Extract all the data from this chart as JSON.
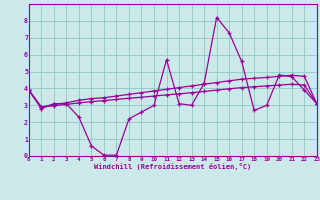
{
  "xlabel": "Windchill (Refroidissement éolien,°C)",
  "xlim": [
    0,
    23
  ],
  "ylim": [
    0,
    9
  ],
  "xticks": [
    0,
    1,
    2,
    3,
    4,
    5,
    6,
    7,
    8,
    9,
    10,
    11,
    12,
    13,
    14,
    15,
    16,
    17,
    18,
    19,
    20,
    21,
    22,
    23
  ],
  "yticks": [
    0,
    1,
    2,
    3,
    4,
    5,
    6,
    7,
    8
  ],
  "bg_color": "#cce9e9",
  "line_color": "#990099",
  "grid_color": "#99cccc",
  "series1_x": [
    0,
    1,
    2,
    3,
    4,
    5,
    6,
    7,
    8,
    9,
    10,
    11,
    12,
    13,
    14,
    15,
    16,
    17,
    18,
    19,
    20,
    21,
    22,
    23
  ],
  "series1_y": [
    3.9,
    2.8,
    3.1,
    3.1,
    2.3,
    0.6,
    0.05,
    0.05,
    2.2,
    2.6,
    3.0,
    5.7,
    3.1,
    3.0,
    4.3,
    8.2,
    7.3,
    5.6,
    2.7,
    3.0,
    4.8,
    4.7,
    3.9,
    3.1
  ],
  "series2_x": [
    0,
    1,
    2,
    3,
    4,
    5,
    6,
    7,
    8,
    9,
    10,
    11,
    12,
    13,
    14,
    15,
    16,
    17,
    18,
    19,
    20,
    21,
    22,
    23
  ],
  "series2_y": [
    3.9,
    2.9,
    3.05,
    3.15,
    3.3,
    3.4,
    3.45,
    3.55,
    3.65,
    3.75,
    3.85,
    3.95,
    4.05,
    4.15,
    4.25,
    4.35,
    4.45,
    4.55,
    4.6,
    4.65,
    4.72,
    4.78,
    4.72,
    3.1
  ],
  "series3_x": [
    0,
    1,
    2,
    3,
    4,
    5,
    6,
    7,
    8,
    9,
    10,
    11,
    12,
    13,
    14,
    15,
    16,
    17,
    18,
    19,
    20,
    21,
    22,
    23
  ],
  "series3_y": [
    3.9,
    2.9,
    2.98,
    3.05,
    3.15,
    3.22,
    3.28,
    3.35,
    3.42,
    3.48,
    3.55,
    3.62,
    3.68,
    3.75,
    3.82,
    3.9,
    3.98,
    4.05,
    4.1,
    4.15,
    4.2,
    4.25,
    4.2,
    3.1
  ]
}
